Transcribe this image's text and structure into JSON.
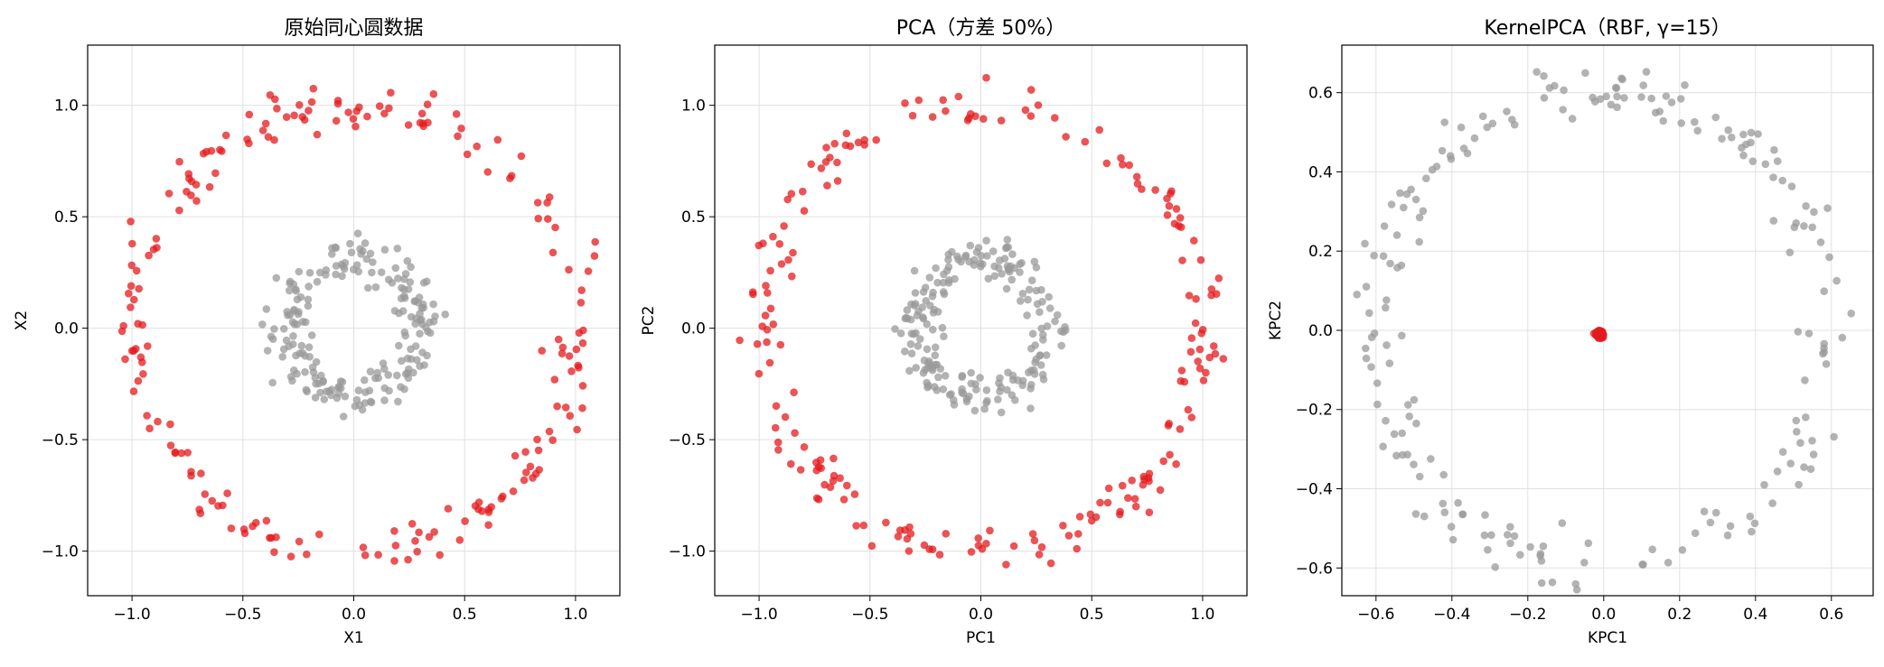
{
  "chart_data": [
    {
      "type": "scatter",
      "title": "原始同心圆数据",
      "xlabel": "X1",
      "ylabel": "X2",
      "xlim": [
        -1.2,
        1.2
      ],
      "ylim": [
        -1.2,
        1.27
      ],
      "xticks": [
        -1.0,
        -0.5,
        0.0,
        0.5,
        1.0
      ],
      "xtick_labels": [
        "−1.0",
        "−0.5",
        "0.0",
        "0.5",
        "1.0"
      ],
      "yticks": [
        -1.0,
        -0.5,
        0.0,
        0.5,
        1.0
      ],
      "ytick_labels": [
        "−1.0",
        "−0.5",
        "0.0",
        "0.5",
        "1.0"
      ],
      "grid": true,
      "colors": {
        "outer": "#e41a1c",
        "inner": "#999999"
      },
      "series": [
        {
          "label_key": "outer",
          "shape": "ring",
          "radius": 1.0,
          "noise": 0.05,
          "count": 200,
          "seed": 11
        },
        {
          "label_key": "inner",
          "shape": "ring",
          "radius": 0.3,
          "noise": 0.05,
          "count": 200,
          "seed": 23
        }
      ]
    },
    {
      "type": "scatter",
      "title": "PCA（方差 50%）",
      "xlabel": "PC1",
      "ylabel": "PC2",
      "xlim": [
        -1.2,
        1.2
      ],
      "ylim": [
        -1.2,
        1.27
      ],
      "xticks": [
        -1.0,
        -0.5,
        0.0,
        0.5,
        1.0
      ],
      "xtick_labels": [
        "−1.0",
        "−0.5",
        "0.0",
        "0.5",
        "1.0"
      ],
      "yticks": [
        -1.0,
        -0.5,
        0.0,
        0.5,
        1.0
      ],
      "ytick_labels": [
        "−1.0",
        "−0.5",
        "0.0",
        "0.5",
        "1.0"
      ],
      "grid": true,
      "colors": {
        "outer": "#e41a1c",
        "inner": "#999999"
      },
      "series": [
        {
          "label_key": "outer",
          "shape": "ring",
          "radius": 1.0,
          "noise": 0.05,
          "count": 200,
          "seed": 37
        },
        {
          "label_key": "inner",
          "shape": "ring",
          "radius": 0.3,
          "noise": 0.05,
          "count": 200,
          "seed": 41
        }
      ]
    },
    {
      "type": "scatter",
      "title": "KernelPCA（RBF, γ=15）",
      "xlabel": "KPC1",
      "ylabel": "KPC2",
      "xlim": [
        -0.69,
        0.71
      ],
      "ylim": [
        -0.67,
        0.72
      ],
      "xticks": [
        -0.6,
        -0.4,
        -0.2,
        0.0,
        0.2,
        0.4,
        0.6
      ],
      "xtick_labels": [
        "−0.6",
        "−0.4",
        "−0.2",
        "0.0",
        "0.2",
        "0.4",
        "0.6"
      ],
      "yticks": [
        -0.6,
        -0.4,
        -0.2,
        0.0,
        0.2,
        0.4,
        0.6
      ],
      "ytick_labels": [
        "−0.6",
        "−0.4",
        "−0.2",
        "0.0",
        "0.2",
        "0.4",
        "0.6"
      ],
      "grid": true,
      "colors": {
        "outer": "#e41a1c",
        "inner": "#999999"
      },
      "series": [
        {
          "label_key": "inner",
          "shape": "ring",
          "radius": 0.6,
          "noise": 0.035,
          "count": 200,
          "seed": 53,
          "cx": 0.0,
          "cy": 0.0
        },
        {
          "label_key": "outer",
          "shape": "cluster",
          "radius": 0.0,
          "noise": 0.004,
          "count": 200,
          "seed": 61,
          "cx": -0.01,
          "cy": -0.01
        }
      ]
    }
  ]
}
